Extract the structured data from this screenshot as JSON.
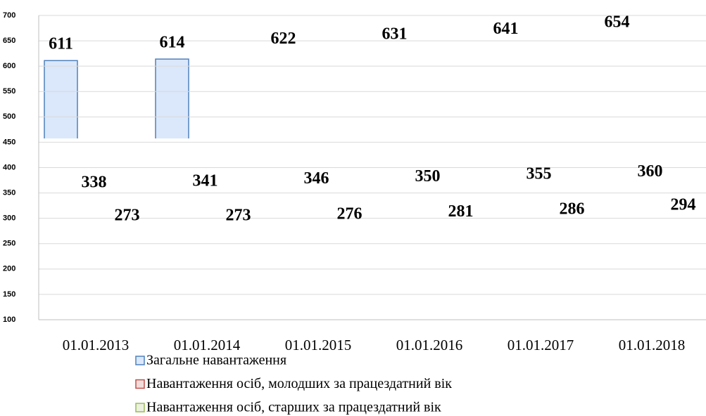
{
  "chart_data": {
    "type": "bar",
    "categories": [
      "01.01.2013",
      "01.01.2014",
      "01.01.2015",
      "01.01.2016",
      "01.01.2017",
      "01.01.2018"
    ],
    "series": [
      {
        "name": "Загальне навантаження",
        "color": "#dbe8fb",
        "values": [
          611,
          614,
          622,
          631,
          641,
          654
        ]
      },
      {
        "name": "Навантаження осіб, молодших за працездатний вік",
        "color": "#f2dcdb",
        "values": [
          338,
          341,
          346,
          350,
          355,
          360
        ]
      },
      {
        "name": "Навантаження осіб, старших за працездатний вік",
        "color": "#ebf1de",
        "values": [
          273,
          273,
          276,
          281,
          286,
          294
        ]
      }
    ],
    "ylim": [
      100,
      700
    ],
    "yticks": [
      100,
      150,
      200,
      250,
      300,
      350,
      400,
      450,
      500,
      550,
      600,
      650,
      700
    ],
    "grid": true
  }
}
